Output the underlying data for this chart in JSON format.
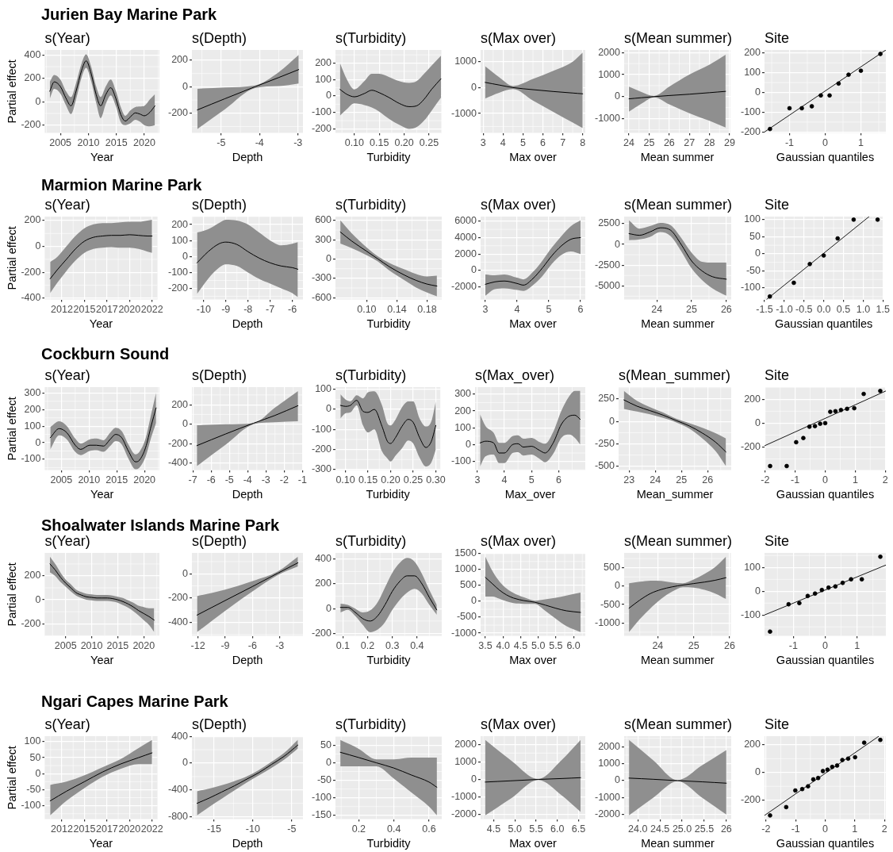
{
  "chart_data": [
    {
      "type": "line",
      "title": "Jurien Bay Marine Park",
      "subtitle": "s(Year)",
      "xlabel": "Year",
      "ylabel": "Partial effect",
      "grid": true,
      "x": [
        2003.1,
        2003.9,
        2005.0,
        2006.0,
        2006.9,
        2007.8,
        2008.8,
        2009.6,
        2010.5,
        2011.4,
        2012.2,
        2013.1,
        2014.0,
        2014.9,
        2015.8,
        2016.6,
        2017.5,
        2018.4,
        2019.2,
        2020.0,
        2021.0,
        2021.9
      ],
      "series": [
        {
          "color": "#000000",
          "values": [
            90,
            170,
            130,
            30,
            -35,
            90,
            270,
            350,
            240,
            60,
            -35,
            60,
            120,
            30,
            -110,
            -165,
            -130,
            -95,
            -105,
            -120,
            -90,
            -35
          ],
          "lower": [
            25,
            110,
            70,
            -30,
            -105,
            20,
            210,
            290,
            175,
            -10,
            -140,
            -20,
            55,
            -35,
            -175,
            -200,
            -185,
            -155,
            -170,
            -200,
            -210,
            -200
          ],
          "upper": [
            170,
            230,
            190,
            90,
            40,
            160,
            330,
            405,
            300,
            130,
            40,
            130,
            190,
            95,
            -45,
            -120,
            -75,
            -45,
            -40,
            -35,
            20,
            65
          ]
        }
      ],
      "xlim": [
        2002.2,
        2022.7
      ],
      "xticks": [
        2005,
        2010,
        2015,
        2020
      ],
      "ylim": [
        -267,
        443
      ],
      "yticks": [
        -200,
        0,
        200,
        400
      ]
    },
    {
      "type": "line",
      "title": "s(Depth)",
      "xlabel": "Depth",
      "grid": true,
      "x": [
        -5.62,
        -4.9,
        -4.12,
        -3.5,
        -2.98
      ],
      "series": [
        {
          "color": "#000000",
          "values": [
            -175,
            -90,
            0,
            70,
            130
          ],
          "lower": [
            -320,
            -170,
            -10,
            5,
            25
          ],
          "upper": [
            -15,
            -5,
            10,
            110,
            240
          ]
        }
      ],
      "xlim": [
        -5.76,
        -2.87
      ],
      "xticks": [
        -5,
        -4,
        -3
      ],
      "ylim": [
        -349,
        278
      ],
      "yticks": [
        -200,
        0,
        200
      ]
    },
    {
      "type": "line",
      "title": "s(Turbidity)",
      "xlabel": "Turbidity",
      "grid": true,
      "x": [
        0.071,
        0.085,
        0.1,
        0.12,
        0.135,
        0.15,
        0.17,
        0.19,
        0.21,
        0.225,
        0.24,
        0.255,
        0.274
      ],
      "series": [
        {
          "color": "#000000",
          "values": [
            40,
            10,
            -5,
            15,
            35,
            20,
            -10,
            -45,
            -65,
            -60,
            -20,
            40,
            105
          ],
          "lower": [
            -120,
            -80,
            -45,
            -55,
            -70,
            -95,
            -140,
            -175,
            -200,
            -190,
            -150,
            -90,
            -10
          ],
          "upper": [
            200,
            100,
            40,
            90,
            135,
            135,
            115,
            90,
            80,
            90,
            135,
            185,
            245
          ]
        }
      ],
      "xlim": [
        0.062,
        0.2755
      ],
      "xticks": [
        {
          "value": 0.1,
          "label": "0.10"
        },
        {
          "value": 0.15,
          "label": "0.15"
        },
        {
          "value": 0.2,
          "label": "0.20"
        },
        {
          "value": 0.25,
          "label": "0.25"
        }
      ],
      "ylim": [
        -225,
        280
      ],
      "yticks": [
        -200,
        -100,
        0,
        100,
        200
      ]
    },
    {
      "type": "line",
      "title": "s(Max over)",
      "xlabel": "Max over",
      "grid": true,
      "x": [
        3.1,
        3.8,
        4.5,
        5.5,
        6.5,
        7.5,
        8.0
      ],
      "series": [
        {
          "color": "#000000",
          "values": [
            200,
            100,
            0,
            -80,
            -150,
            -210,
            -240
          ],
          "lower": [
            -420,
            -200,
            -60,
            -500,
            -930,
            -1350,
            -1560
          ],
          "upper": [
            820,
            400,
            60,
            330,
            640,
            1000,
            1350
          ]
        }
      ],
      "xlim": [
        2.87,
        8.13
      ],
      "xticks": [
        3,
        4,
        5,
        6,
        7,
        8
      ],
      "ylim": [
        -1750,
        1450
      ],
      "yticks": [
        -1000,
        0,
        1000
      ]
    },
    {
      "type": "line",
      "title": "s(Mean summer)",
      "xlabel": "Mean summer",
      "grid": true,
      "x": [
        24.0,
        24.6,
        25.25,
        26,
        27,
        28,
        28.8
      ],
      "series": [
        {
          "color": "#000000",
          "values": [
            -100,
            -50,
            0,
            50,
            110,
            180,
            240
          ],
          "lower": [
            -680,
            -330,
            -30,
            -350,
            -750,
            -1100,
            -1400
          ],
          "upper": [
            450,
            220,
            30,
            450,
            1000,
            1450,
            1900
          ]
        }
      ],
      "xlim": [
        23.76,
        29.04
      ],
      "xticks": [
        24,
        25,
        26,
        27,
        28,
        29
      ],
      "ylim": [
        -1650,
        2120
      ],
      "yticks": [
        -1000,
        0,
        1000,
        2000
      ]
    },
    {
      "type": "scatter",
      "title": "Site",
      "xlabel": "Gaussian quantiles",
      "grid": true,
      "x": [
        -1.547,
        -1.0,
        -0.655,
        -0.375,
        -0.123,
        0.123,
        0.375,
        0.655,
        1.0,
        1.547
      ],
      "series": [
        {
          "color": "#000000",
          "marker": "circle",
          "values": [
            -185,
            -80,
            -80,
            -70,
            -15,
            -15,
            45,
            90,
            110,
            195
          ]
        },
        {
          "type": "line",
          "color": "#1a1a1a",
          "x": [
            -1.7,
            1.7
          ],
          "values": [
            -200,
            215
          ]
        }
      ],
      "xlim": [
        -1.7,
        1.7
      ],
      "xticks": [
        -1,
        0,
        1
      ],
      "ylim": [
        -205,
        215
      ],
      "yticks": [
        -200,
        -100,
        0,
        100,
        200
      ]
    },
    {
      "type": "line",
      "title": "Marmion Marine Park",
      "subtitle": "s(Year)",
      "xlabel": "Year",
      "ylabel": "Partial effect",
      "grid": true,
      "x": [
        2011.2,
        2012,
        2013,
        2014,
        2015,
        2016,
        2017,
        2018,
        2019,
        2020,
        2021,
        2022,
        2022.5
      ],
      "series": [
        {
          "color": "#000000",
          "values": [
            -250,
            -180,
            -100,
            -20,
            40,
            70,
            80,
            85,
            85,
            90,
            85,
            80,
            80
          ],
          "lower": [
            -360,
            -280,
            -190,
            -110,
            -50,
            -20,
            -10,
            -5,
            -10,
            -10,
            -20,
            -40,
            -50
          ],
          "upper": [
            -120,
            -80,
            0,
            80,
            140,
            170,
            180,
            180,
            185,
            190,
            190,
            200,
            205
          ]
        }
      ],
      "xlim": [
        2010.6,
        2023.1
      ],
      "xticks": [
        {
          "value": 2012.5,
          "label": "2012"
        },
        2015,
        {
          "value": 2017.5,
          "label": "2017"
        },
        2020,
        {
          "value": 2022.5,
          "label": "2022"
        }
      ],
      "ylim": [
        -410,
        230
      ],
      "yticks": [
        -400,
        -200,
        0,
        200
      ]
    },
    {
      "type": "line",
      "title": "s(Depth)",
      "xlabel": "Depth",
      "grid": true,
      "x": [
        -10.3,
        -9.8,
        -9.3,
        -9.0,
        -8.5,
        -8,
        -7.5,
        -7,
        -6.5,
        -6,
        -5.75
      ],
      "series": [
        {
          "color": "#000000",
          "values": [
            -40,
            30,
            80,
            90,
            75,
            30,
            -10,
            -40,
            -60,
            -70,
            -80
          ],
          "lower": [
            -235,
            -140,
            -70,
            -50,
            -60,
            -100,
            -140,
            -170,
            -200,
            -230,
            -255
          ],
          "upper": [
            150,
            170,
            210,
            230,
            225,
            200,
            150,
            100,
            70,
            80,
            90
          ]
        }
      ],
      "xlim": [
        -10.53,
        -5.52
      ],
      "xticks": [
        -10,
        -9,
        -8,
        -7,
        -6
      ],
      "ylim": [
        -270,
        250
      ],
      "yticks": [
        -200,
        -100,
        0,
        100,
        200
      ]
    },
    {
      "type": "line",
      "title": "s(Turbidity)",
      "xlabel": "Turbidity",
      "grid": true,
      "x": [
        0.065,
        0.08,
        0.1,
        0.115,
        0.13,
        0.15,
        0.165,
        0.18,
        0.193
      ],
      "series": [
        {
          "color": "#000000",
          "values": [
            420,
            280,
            120,
            0,
            -120,
            -250,
            -330,
            -390,
            -420
          ],
          "lower": [
            240,
            170,
            60,
            -40,
            -180,
            -330,
            -440,
            -520,
            -580
          ],
          "upper": [
            600,
            400,
            180,
            40,
            -60,
            -160,
            -230,
            -270,
            -260
          ]
        }
      ],
      "xlim": [
        0.0586,
        0.1994
      ],
      "xticks": [
        {
          "value": 0.1,
          "label": "0.10"
        },
        {
          "value": 0.14,
          "label": "0.14"
        },
        {
          "value": 0.18,
          "label": "0.18"
        }
      ],
      "ylim": [
        -630,
        660
      ],
      "yticks": [
        -600,
        -300,
        0,
        300,
        600
      ]
    },
    {
      "type": "line",
      "title": "s(Max over)",
      "xlabel": "Max over",
      "grid": true,
      "x": [
        3.0,
        3.3,
        3.6,
        4.0,
        4.2,
        4.5,
        4.8,
        5.1,
        5.4,
        5.7,
        6.0
      ],
      "series": [
        {
          "color": "#000000",
          "values": [
            -1700,
            -1400,
            -1300,
            -1600,
            -1800,
            -1000,
            300,
            1800,
            3000,
            3800,
            4000
          ],
          "lower": [
            -3100,
            -2300,
            -2200,
            -2400,
            -2500,
            -1800,
            -700,
            800,
            1900,
            2300,
            2000
          ],
          "upper": [
            -500,
            -600,
            -500,
            -900,
            -1100,
            -200,
            1200,
            2800,
            4200,
            5400,
            6100
          ]
        }
      ],
      "xlim": [
        2.85,
        6.15
      ],
      "xticks": [
        3,
        4,
        5,
        6
      ],
      "ylim": [
        -3560,
        6560
      ],
      "yticks": [
        -2000,
        0,
        2000,
        4000,
        6000
      ]
    },
    {
      "type": "line",
      "title": "s(Mean summer)",
      "xlabel": "Mean summer",
      "grid": true,
      "x": [
        23.2,
        23.5,
        23.8,
        24.1,
        24.4,
        24.7,
        25.0,
        25.3,
        25.6,
        26.0
      ],
      "series": [
        {
          "color": "#000000",
          "values": [
            1300,
            1100,
            1500,
            2000,
            1700,
            0,
            -2000,
            -3200,
            -3900,
            -4200
          ],
          "lower": [
            500,
            600,
            900,
            1500,
            1000,
            -800,
            -2900,
            -4300,
            -5300,
            -6200
          ],
          "upper": [
            2900,
            1900,
            2200,
            2600,
            2300,
            800,
            -1000,
            -2100,
            -2200,
            -2200
          ]
        }
      ],
      "xlim": [
        23.06,
        26.14
      ],
      "xticks": [
        24,
        25,
        26
      ],
      "ylim": [
        -6660,
        3360
      ],
      "yticks": [
        -5000,
        -2500,
        0,
        2500
      ]
    },
    {
      "type": "scatter",
      "title": "Site",
      "xlabel": "Gaussian quantiles",
      "grid": true,
      "x": [
        -1.365,
        -0.758,
        -0.353,
        0,
        0.353,
        0.758,
        1.365
      ],
      "series": [
        {
          "color": "#000000",
          "marker": "circle",
          "values": [
            -125,
            -85,
            -30,
            -5,
            45,
            100,
            100
          ]
        },
        {
          "type": "line",
          "color": "#1a1a1a",
          "x": [
            -1.45,
            1.15
          ],
          "values": [
            -134,
            109
          ]
        }
      ],
      "xlim": [
        -1.5,
        1.5
      ],
      "xticks": [
        -1.5,
        {
          "value": -1,
          "label": "-1.0"
        },
        -0.5,
        {
          "value": 0,
          "label": "0.0"
        },
        0.5,
        {
          "value": 1,
          "label": "1.0"
        },
        1.5
      ],
      "ylim": [
        -134,
        109
      ],
      "yticks": [
        -100,
        -50,
        0,
        50,
        100
      ]
    },
    {
      "type": "line",
      "title": "Cockburn Sound",
      "subtitle": "s(Year)",
      "xlabel": "Year",
      "ylabel": "Partial effect",
      "grid": true,
      "x": [
        2003.0,
        2004.6,
        2006.0,
        2007.5,
        2008.5,
        2010.1,
        2011.3,
        2012.6,
        2013.8,
        2014.8,
        2015.9,
        2017.1,
        2018.4,
        2019.1,
        2020.2,
        2021.2,
        2022.1
      ],
      "series": [
        {
          "color": "#000000",
          "values": [
            30,
            85,
            60,
            -15,
            -40,
            -15,
            -15,
            -20,
            20,
            50,
            30,
            -50,
            -115,
            -105,
            -30,
            100,
            210
          ],
          "lower": [
            -40,
            45,
            20,
            -55,
            -75,
            -50,
            -45,
            -55,
            -20,
            10,
            -10,
            -95,
            -160,
            -150,
            -85,
            30,
            120
          ],
          "upper": [
            95,
            130,
            100,
            25,
            -5,
            20,
            25,
            15,
            60,
            90,
            70,
            -10,
            -70,
            -55,
            25,
            170,
            300
          ]
        }
      ],
      "xlim": [
        2002.0,
        2022.7
      ],
      "xticks": [
        2005,
        2010,
        2015,
        2020
      ],
      "ylim": [
        -165,
        335
      ],
      "yticks": [
        -100,
        0,
        100,
        200,
        300
      ]
    },
    {
      "type": "line",
      "title": "s(Depth)",
      "xlabel": "Depth",
      "grid": true,
      "x": [
        -6.78,
        -5.2,
        -3.68,
        -2.5,
        -1.24
      ],
      "series": [
        {
          "color": "#000000",
          "values": [
            -220,
            -100,
            10,
            90,
            190
          ],
          "lower": [
            -430,
            -210,
            0,
            20,
            30
          ],
          "upper": [
            -10,
            0,
            10,
            170,
            340
          ]
        }
      ],
      "xlim": [
        -7.05,
        -0.97
      ],
      "xticks": [
        -7,
        -6,
        -5,
        -4,
        -3,
        -2,
        -1
      ],
      "ylim": [
        -471,
        380
      ],
      "yticks": [
        -400,
        -200,
        0,
        200
      ]
    },
    {
      "type": "line",
      "title": "s(Turbidity)",
      "xlabel": "Turbidity",
      "grid": true,
      "x": [
        0.089,
        0.1,
        0.111,
        0.125,
        0.139,
        0.15,
        0.164,
        0.181,
        0.193,
        0.2,
        0.211,
        0.225,
        0.239,
        0.25,
        0.264,
        0.278,
        0.29,
        0.3
      ],
      "series": [
        {
          "color": "#000000",
          "values": [
            20,
            15,
            20,
            45,
            -10,
            -15,
            0,
            -85,
            -160,
            -170,
            -140,
            -85,
            -50,
            -65,
            -140,
            -190,
            -160,
            -80
          ],
          "lower": [
            -45,
            -20,
            -15,
            20,
            -80,
            -115,
            -100,
            -210,
            -245,
            -260,
            -230,
            -195,
            -155,
            -170,
            -240,
            -285,
            -265,
            -200
          ],
          "upper": [
            75,
            50,
            40,
            70,
            55,
            85,
            90,
            20,
            -70,
            -80,
            -50,
            10,
            40,
            40,
            -45,
            -85,
            -60,
            40
          ]
        }
      ],
      "xlim": [
        0.078,
        0.31
      ],
      "xticks": [
        {
          "value": 0.1,
          "label": "0.10"
        },
        {
          "value": 0.15,
          "label": "0.15"
        },
        {
          "value": 0.2,
          "label": "0.20"
        },
        {
          "value": 0.25,
          "label": "0.25"
        },
        {
          "value": 0.3,
          "label": "0.30"
        }
      ],
      "ylim": [
        -303,
        111
      ],
      "yticks": [
        -300,
        -200,
        -100,
        0,
        100
      ]
    },
    {
      "type": "line",
      "title": "s(Max_over)",
      "xlabel": "Max_over",
      "grid": true,
      "x": [
        3.1,
        3.3,
        3.6,
        3.8,
        4.0,
        4.3,
        4.5,
        4.7,
        5.0,
        5.3,
        5.5,
        5.8,
        6.1,
        6.4,
        6.6,
        6.8
      ],
      "series": [
        {
          "color": "#000000",
          "values": [
            10,
            20,
            10,
            -50,
            -50,
            0,
            5,
            -15,
            -10,
            -35,
            -50,
            10,
            120,
            170,
            175,
            150
          ],
          "lower": [
            -130,
            -70,
            -60,
            -110,
            -110,
            -50,
            -45,
            -65,
            -60,
            -85,
            -105,
            -55,
            40,
            60,
            40,
            0
          ],
          "upper": [
            180,
            110,
            70,
            10,
            10,
            50,
            55,
            35,
            40,
            15,
            5,
            75,
            200,
            290,
            320,
            320
          ]
        }
      ],
      "xlim": [
        2.915,
        6.985
      ],
      "xticks": [
        3,
        4,
        5,
        6
      ],
      "ylim": [
        -152,
        342
      ],
      "yticks": [
        -100,
        0,
        100,
        200,
        300
      ]
    },
    {
      "type": "line",
      "title": "s(Mean_summer)",
      "xlabel": "Mean_summer",
      "grid": true,
      "x": [
        22.8,
        23.3,
        23.8,
        24.3,
        24.8,
        25.3,
        25.8,
        26.3,
        26.7
      ],
      "series": [
        {
          "color": "#000000",
          "values": [
            240,
            170,
            120,
            70,
            10,
            -50,
            -130,
            -230,
            -340
          ],
          "lower": [
            140,
            110,
            80,
            40,
            -10,
            -80,
            -190,
            -330,
            -500
          ],
          "upper": [
            340,
            230,
            160,
            100,
            30,
            -20,
            -70,
            -130,
            -190
          ]
        }
      ],
      "xlim": [
        22.6,
        26.9
      ],
      "xticks": [
        23,
        24,
        25,
        26
      ],
      "ylim": [
        -542,
        382
      ],
      "yticks": [
        -500,
        -250,
        0,
        250
      ]
    },
    {
      "type": "scatter",
      "title": "Site",
      "xlabel": "Gaussian quantiles",
      "grid": true,
      "x": [
        -1.834,
        -1.282,
        -0.967,
        -0.728,
        -0.524,
        -0.341,
        -0.168,
        0,
        0.168,
        0.341,
        0.524,
        0.728,
        0.967,
        1.282,
        1.834
      ],
      "series": [
        {
          "color": "#000000",
          "marker": "circle",
          "values": [
            -360,
            -360,
            -160,
            -125,
            -30,
            -25,
            -5,
            0,
            95,
            100,
            110,
            120,
            125,
            245,
            270
          ]
        },
        {
          "type": "line",
          "color": "#1a1a1a",
          "x": [
            -2.02,
            2.02
          ],
          "values": [
            -190,
            270
          ]
        }
      ],
      "xlim": [
        -2.02,
        2.02
      ],
      "xticks": [
        -2,
        -1,
        0,
        1,
        2
      ],
      "ylim": [
        -394,
        302
      ],
      "yticks": [
        -200,
        0,
        200
      ]
    },
    {
      "type": "line",
      "title": "Shoalwater Islands Marine Park",
      "subtitle": "s(Year)",
      "xlabel": "Year",
      "ylabel": "Partial effect",
      "grid": true,
      "x": [
        2002,
        2003,
        2004,
        2005,
        2006,
        2007,
        2008,
        2009,
        2010,
        2011,
        2012,
        2013,
        2014,
        2015,
        2016,
        2017,
        2018,
        2019,
        2020,
        2021,
        2022
      ],
      "series": [
        {
          "color": "#000000",
          "values": [
            300,
            250,
            190,
            140,
            100,
            60,
            40,
            25,
            20,
            15,
            15,
            15,
            10,
            0,
            -15,
            -35,
            -60,
            -90,
            -115,
            -140,
            -170
          ],
          "lower": [
            230,
            200,
            150,
            110,
            70,
            35,
            15,
            0,
            -5,
            -10,
            -10,
            -10,
            -15,
            -25,
            -45,
            -65,
            -95,
            -130,
            -170,
            -210,
            -270
          ],
          "upper": [
            360,
            300,
            230,
            170,
            130,
            85,
            65,
            50,
            45,
            40,
            40,
            40,
            35,
            25,
            15,
            -5,
            -25,
            -50,
            -60,
            -70,
            -70
          ]
        }
      ],
      "xlim": [
        2001,
        2023
      ],
      "xticks": [
        2005,
        2010,
        2015,
        2020
      ],
      "ylim": [
        -302,
        392
      ],
      "yticks": [
        -200,
        0,
        200
      ]
    },
    {
      "type": "line",
      "title": "s(Depth)",
      "xlabel": "Depth",
      "grid": true,
      "x": [
        -12.1,
        -9,
        -6,
        -3.2,
        -1.0
      ],
      "series": [
        {
          "color": "#000000",
          "values": [
            -340,
            -220,
            -105,
            5,
            90
          ],
          "lower": [
            -480,
            -305,
            -145,
            -10,
            60
          ],
          "upper": [
            -185,
            -130,
            -60,
            20,
            140
          ]
        }
      ],
      "xlim": [
        -12.66,
        -0.45
      ],
      "xticks": [
        -12,
        -9,
        -6,
        -3
      ],
      "ylim": [
        -511,
        171
      ],
      "yticks": [
        -400,
        -200,
        0
      ]
    },
    {
      "type": "line",
      "title": "s(Turbidity)",
      "xlabel": "Turbidity",
      "grid": true,
      "x": [
        0.09,
        0.12,
        0.15,
        0.18,
        0.21,
        0.24,
        0.27,
        0.3,
        0.33,
        0.36,
        0.39,
        0.42,
        0.45,
        0.48
      ],
      "series": [
        {
          "color": "#000000",
          "values": [
            10,
            10,
            -30,
            -80,
            -100,
            -60,
            30,
            140,
            220,
            265,
            265,
            200,
            90,
            -10
          ],
          "lower": [
            -30,
            -10,
            -60,
            -130,
            -190,
            -170,
            -110,
            -10,
            70,
            130,
            160,
            120,
            30,
            -50
          ],
          "upper": [
            40,
            30,
            0,
            -30,
            -15,
            50,
            170,
            290,
            370,
            410,
            380,
            280,
            150,
            30
          ]
        }
      ],
      "xlim": [
        0.07,
        0.5
      ],
      "xticks": [
        0.1,
        0.2,
        0.3,
        0.4
      ],
      "ylim": [
        -220,
        450
      ],
      "yticks": [
        -200,
        0,
        200,
        400
      ]
    },
    {
      "type": "line",
      "title": "s(Max over)",
      "xlabel": "Max over",
      "grid": true,
      "x": [
        3.5,
        3.7,
        3.9,
        4.1,
        4.3,
        4.6,
        4.9,
        5.2,
        5.5,
        5.8,
        6.2
      ],
      "series": [
        {
          "color": "#000000",
          "values": [
            750,
            550,
            350,
            200,
            100,
            20,
            -30,
            -120,
            -220,
            -300,
            -350
          ],
          "lower": [
            150,
            150,
            80,
            0,
            -60,
            -80,
            -80,
            -300,
            -550,
            -780,
            -970
          ],
          "upper": [
            1400,
            950,
            620,
            400,
            260,
            120,
            20,
            60,
            110,
            180,
            270
          ]
        }
      ],
      "xlim": [
        3.365,
        6.335
      ],
      "xticks": [
        3.5,
        {
          "value": 4,
          "label": "4.0"
        },
        4.5,
        {
          "value": 5,
          "label": "5.0"
        },
        5.5,
        {
          "value": 6,
          "label": "6.0"
        }
      ],
      "ylim": [
        -1088,
        1518
      ],
      "yticks": [
        -1000,
        -500,
        0,
        500,
        1000,
        1500
      ]
    },
    {
      "type": "line",
      "title": "s(Mean summer)",
      "xlabel": "Mean summer",
      "grid": true,
      "x": [
        23.2,
        23.5,
        23.8,
        24.1,
        24.4,
        24.7,
        25.0,
        25.3,
        25.6,
        25.9
      ],
      "series": [
        {
          "color": "#000000",
          "values": [
            -600,
            -380,
            -200,
            -90,
            -20,
            30,
            70,
            110,
            160,
            230
          ],
          "lower": [
            -1250,
            -900,
            -600,
            -340,
            -150,
            -30,
            -40,
            -100,
            -200,
            -350
          ],
          "upper": [
            80,
            120,
            150,
            140,
            100,
            80,
            180,
            330,
            520,
            800
          ]
        }
      ],
      "xlim": [
        23.065,
        26.035
      ],
      "xticks": [
        24,
        25,
        26
      ],
      "ylim": [
        -1352,
        902
      ],
      "yticks": [
        -1000,
        -500,
        0,
        500
      ]
    },
    {
      "type": "scatter",
      "title": "Site",
      "xlabel": "Gaussian quantiles",
      "grid": true,
      "x": [
        -1.732,
        -1.15,
        -0.812,
        -0.549,
        -0.319,
        -0.105,
        0.105,
        0.319,
        0.549,
        0.812,
        1.15,
        1.732
      ],
      "series": [
        {
          "color": "#000000",
          "marker": "circle",
          "values": [
            -170,
            -55,
            -50,
            -20,
            -10,
            5,
            15,
            20,
            35,
            50,
            50,
            145
          ]
        },
        {
          "type": "line",
          "color": "#1a1a1a",
          "x": [
            -1.905,
            1.905
          ],
          "values": [
            -100,
            110
          ]
        }
      ],
      "xlim": [
        -1.905,
        1.905
      ],
      "xticks": [
        -1,
        0,
        1
      ],
      "ylim": [
        -188,
        161
      ],
      "yticks": [
        -100,
        0,
        100
      ]
    },
    {
      "type": "line",
      "title": "Ngari Capes Marine Park",
      "subtitle": "s(Year)",
      "xlabel": "Year",
      "ylabel": "Partial effect",
      "grid": true,
      "x": [
        2011.2,
        2013,
        2015,
        2017,
        2019,
        2021,
        2022.5
      ],
      "series": [
        {
          "color": "#000000",
          "values": [
            -85,
            -55,
            -25,
            5,
            30,
            50,
            65
          ],
          "lower": [
            -130,
            -85,
            -45,
            -10,
            15,
            30,
            30
          ],
          "upper": [
            -35,
            -25,
            -5,
            20,
            45,
            80,
            105
          ]
        }
      ],
      "xlim": [
        2010.6,
        2023.1
      ],
      "xticks": [
        {
          "value": 2012.5,
          "label": "2012"
        },
        2015,
        {
          "value": 2017.5,
          "label": "2017"
        },
        2020,
        {
          "value": 2022.5,
          "label": "2022"
        }
      ],
      "ylim": [
        -142,
        117
      ],
      "yticks": [
        -100,
        -50,
        0,
        50,
        100
      ]
    },
    {
      "type": "line",
      "title": "s(Depth)",
      "xlabel": "Depth",
      "grid": true,
      "x": [
        -17.2,
        -15.6,
        -14,
        -12.4,
        -10.8,
        -9.2,
        -7.6,
        -6,
        -4.2
      ],
      "series": [
        {
          "color": "#000000",
          "values": [
            -600,
            -520,
            -430,
            -340,
            -240,
            -140,
            -20,
            100,
            270
          ],
          "lower": [
            -780,
            -650,
            -530,
            -410,
            -290,
            -180,
            -70,
            50,
            220
          ],
          "upper": [
            -420,
            -380,
            -330,
            -270,
            -200,
            -100,
            20,
            150,
            350
          ]
        }
      ],
      "xlim": [
        -17.85,
        -3.55
      ],
      "xticks": [
        -15,
        -10,
        -5
      ],
      "ylim": [
        -836,
        402
      ],
      "yticks": [
        -800,
        -400,
        0,
        400
      ]
    },
    {
      "type": "line",
      "title": "s(Turbidity)",
      "xlabel": "Turbidity",
      "grid": true,
      "x": [
        0.095,
        0.2,
        0.3,
        0.4,
        0.5,
        0.6,
        0.645
      ],
      "series": [
        {
          "color": "#000000",
          "values": [
            30,
            15,
            0,
            -15,
            -35,
            -55,
            -70
          ],
          "lower": [
            -10,
            -10,
            -10,
            -45,
            -85,
            -125,
            -150
          ],
          "upper": [
            65,
            40,
            10,
            10,
            15,
            15,
            15
          ]
        }
      ],
      "xlim": [
        0.0675,
        0.6725
      ],
      "xticks": [
        0.2,
        0.4,
        0.6
      ],
      "ylim": [
        -161,
        76
      ],
      "yticks": [
        -150,
        -100,
        -50,
        0,
        50
      ]
    },
    {
      "type": "line",
      "title": "s(Max over)",
      "xlabel": "Max over",
      "grid": true,
      "x": [
        4.3,
        4.9,
        5.55,
        6.1,
        6.55
      ],
      "series": [
        {
          "color": "#000000",
          "values": [
            -150,
            -80,
            0,
            50,
            100
          ],
          "lower": [
            -2050,
            -1100,
            -30,
            -900,
            -1850
          ],
          "upper": [
            2250,
            1100,
            30,
            1100,
            2250
          ]
        }
      ],
      "xlim": [
        4.19,
        6.66
      ],
      "xticks": [
        4.5,
        {
          "value": 5,
          "label": "5.0"
        },
        5.5,
        {
          "value": 6,
          "label": "6.0"
        },
        6.5
      ],
      "ylim": [
        -2265,
        2465
      ],
      "yticks": [
        -2000,
        -1000,
        0,
        1000,
        2000
      ]
    },
    {
      "type": "line",
      "title": "s(Mean summer)",
      "xlabel": "Mean summer",
      "grid": true,
      "x": [
        23.8,
        24.35,
        24.9,
        25.45,
        26.0
      ],
      "series": [
        {
          "color": "#000000",
          "values": [
            150,
            80,
            0,
            -70,
            -150
          ],
          "lower": [
            -2050,
            -1000,
            -30,
            -1000,
            -2000
          ],
          "upper": [
            2400,
            1200,
            30,
            900,
            1800
          ]
        }
      ],
      "xlim": [
        23.69,
        26.11
      ],
      "xticks": [
        {
          "value": 24,
          "label": "24.0"
        },
        24.5,
        {
          "value": 25,
          "label": "25.0"
        },
        25.5,
        26
      ],
      "ylim": [
        -2272,
        2622
      ],
      "yticks": [
        -2000,
        -1000,
        0,
        1000,
        2000
      ]
    },
    {
      "type": "scatter",
      "title": "Site",
      "xlabel": "Gaussian quantiles",
      "grid": true,
      "x": [
        -1.863,
        -1.318,
        -1.01,
        -0.776,
        -0.579,
        -0.402,
        -0.237,
        -0.078,
        0.078,
        0.237,
        0.402,
        0.579,
        0.776,
        1.01,
        1.318,
        1.863
      ],
      "series": [
        {
          "color": "#000000",
          "marker": "circle",
          "values": [
            -310,
            -250,
            -130,
            -120,
            -100,
            -50,
            -40,
            10,
            20,
            40,
            50,
            90,
            100,
            110,
            215,
            235
          ]
        },
        {
          "type": "line",
          "color": "#1a1a1a",
          "x": [
            -2.05,
            1.8
          ],
          "values": [
            -310,
            260
          ]
        }
      ],
      "xlim": [
        -2.05,
        2.05
      ],
      "xticks": [
        -2,
        -1,
        0,
        1,
        2
      ],
      "ylim": [
        -337,
        262
      ],
      "yticks": [
        -200,
        0,
        200
      ]
    }
  ]
}
